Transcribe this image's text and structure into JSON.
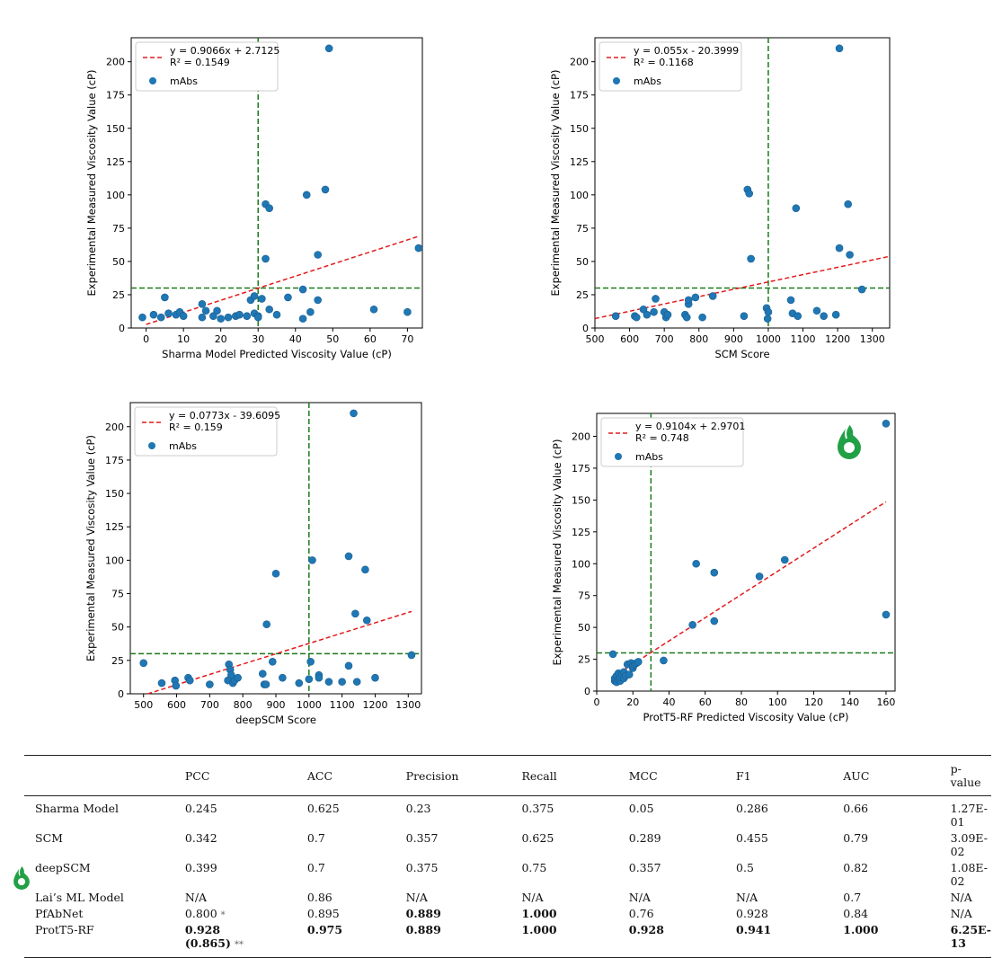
{
  "colors": {
    "point": "#1f77b4",
    "fit": "#e31a1c",
    "threshold": "#1a7a1a",
    "logo": "#22a046"
  },
  "chart_data": [
    {
      "type": "scatter",
      "xlabel": "Sharma Model Predicted Viscosity Value (cP)",
      "ylabel": "Experimental Measured Viscosity Value (cP)",
      "xlim": [
        -4,
        74
      ],
      "ylim": [
        0,
        218
      ],
      "xticks": [
        0,
        10,
        20,
        30,
        40,
        50,
        60,
        70
      ],
      "yticks": [
        0,
        25,
        50,
        75,
        100,
        125,
        150,
        175,
        200
      ],
      "legend": {
        "position": "top-left",
        "line1": "y = 0.9066x + 2.7125",
        "line2": "R² = 0.1549",
        "points": "mAbs"
      },
      "fit": {
        "slope": 0.9066,
        "intercept": 2.7125,
        "x_from": 0,
        "x_to": 73
      },
      "threshold": {
        "x": 30,
        "y": 30
      },
      "points": [
        [
          -1,
          8
        ],
        [
          2,
          10
        ],
        [
          4,
          8
        ],
        [
          5,
          23
        ],
        [
          6,
          11
        ],
        [
          8,
          10
        ],
        [
          9,
          12
        ],
        [
          10,
          9
        ],
        [
          15,
          18
        ],
        [
          15,
          8
        ],
        [
          16,
          13
        ],
        [
          18,
          9
        ],
        [
          19,
          13
        ],
        [
          20,
          7
        ],
        [
          22,
          8
        ],
        [
          24,
          9
        ],
        [
          25,
          10
        ],
        [
          27,
          9
        ],
        [
          28,
          21
        ],
        [
          29,
          11
        ],
        [
          29,
          24
        ],
        [
          30,
          9
        ],
        [
          30,
          8
        ],
        [
          31,
          22
        ],
        [
          32,
          93
        ],
        [
          33,
          90
        ],
        [
          32,
          52
        ],
        [
          33,
          14
        ],
        [
          35,
          10
        ],
        [
          38,
          23
        ],
        [
          42,
          29
        ],
        [
          42,
          7
        ],
        [
          43,
          100
        ],
        [
          44,
          12
        ],
        [
          46,
          55
        ],
        [
          46,
          21
        ],
        [
          48,
          104
        ],
        [
          49,
          210
        ],
        [
          61,
          14
        ],
        [
          70,
          12
        ],
        [
          73,
          60
        ]
      ]
    },
    {
      "type": "scatter",
      "xlabel": "SCM Score",
      "ylabel": "Experimental Measured Viscosity Value (cP)",
      "xlim": [
        500,
        1350
      ],
      "ylim": [
        0,
        218
      ],
      "xticks": [
        500,
        600,
        700,
        800,
        900,
        1000,
        1100,
        1200,
        1300
      ],
      "yticks": [
        0,
        25,
        50,
        75,
        100,
        125,
        150,
        175,
        200
      ],
      "legend": {
        "position": "top-left",
        "line1": "y = 0.055x - 20.3999",
        "line2": "R² = 0.1168",
        "points": "mAbs"
      },
      "fit": {
        "slope": 0.055,
        "intercept": -20.3999,
        "x_from": 500,
        "x_to": 1350
      },
      "threshold": {
        "x": 1000,
        "y": 30
      },
      "points": [
        [
          560,
          9
        ],
        [
          615,
          9
        ],
        [
          620,
          8
        ],
        [
          640,
          14
        ],
        [
          650,
          10
        ],
        [
          670,
          12
        ],
        [
          675,
          22
        ],
        [
          700,
          12
        ],
        [
          705,
          8
        ],
        [
          710,
          10
        ],
        [
          760,
          10
        ],
        [
          765,
          8
        ],
        [
          770,
          18
        ],
        [
          770,
          21
        ],
        [
          790,
          23
        ],
        [
          810,
          8
        ],
        [
          840,
          24
        ],
        [
          930,
          9
        ],
        [
          940,
          104
        ],
        [
          945,
          101
        ],
        [
          950,
          52
        ],
        [
          995,
          15
        ],
        [
          998,
          7
        ],
        [
          1000,
          12
        ],
        [
          1065,
          21
        ],
        [
          1070,
          11
        ],
        [
          1080,
          90
        ],
        [
          1085,
          9
        ],
        [
          1140,
          13
        ],
        [
          1160,
          9
        ],
        [
          1195,
          10
        ],
        [
          1205,
          60
        ],
        [
          1205,
          210
        ],
        [
          1230,
          93
        ],
        [
          1235,
          55
        ],
        [
          1270,
          29
        ]
      ]
    },
    {
      "type": "scatter",
      "xlabel": "deepSCM Score",
      "ylabel": "Experimental Measured Viscosity Value (cP)",
      "xlim": [
        460,
        1340
      ],
      "ylim": [
        0,
        218
      ],
      "xticks": [
        500,
        600,
        700,
        800,
        900,
        1000,
        1100,
        1200,
        1300
      ],
      "yticks": [
        0,
        25,
        50,
        75,
        100,
        125,
        150,
        175,
        200
      ],
      "legend": {
        "position": "top-left",
        "line1": "y = 0.0773x - 39.6095",
        "line2": "R² = 0.159",
        "points": "mAbs"
      },
      "fit": {
        "slope": 0.0773,
        "intercept": -39.6095,
        "x_from": 512,
        "x_to": 1310
      },
      "threshold": {
        "x": 1000,
        "y": 30
      },
      "points": [
        [
          500,
          23
        ],
        [
          555,
          8
        ],
        [
          595,
          10
        ],
        [
          598,
          6
        ],
        [
          635,
          12
        ],
        [
          640,
          10
        ],
        [
          700,
          7
        ],
        [
          755,
          10
        ],
        [
          758,
          22
        ],
        [
          762,
          18
        ],
        [
          765,
          14
        ],
        [
          770,
          8
        ],
        [
          775,
          10
        ],
        [
          785,
          12
        ],
        [
          860,
          15
        ],
        [
          865,
          7
        ],
        [
          870,
          7
        ],
        [
          872,
          52
        ],
        [
          890,
          24
        ],
        [
          900,
          90
        ],
        [
          920,
          12
        ],
        [
          970,
          8
        ],
        [
          1000,
          11
        ],
        [
          1005,
          24
        ],
        [
          1010,
          100
        ],
        [
          1030,
          14
        ],
        [
          1030,
          12
        ],
        [
          1060,
          9
        ],
        [
          1100,
          9
        ],
        [
          1120,
          103
        ],
        [
          1120,
          21
        ],
        [
          1135,
          210
        ],
        [
          1140,
          60
        ],
        [
          1145,
          9
        ],
        [
          1170,
          93
        ],
        [
          1175,
          55
        ],
        [
          1200,
          12
        ],
        [
          1310,
          29
        ]
      ]
    },
    {
      "type": "scatter",
      "xlabel": "ProtT5-RF Predicted Viscosity Value (cP)",
      "ylabel": "Experimental Measured Viscosity Value (cP)",
      "xlim": [
        0,
        165
      ],
      "ylim": [
        0,
        218
      ],
      "xticks": [
        0,
        20,
        40,
        60,
        80,
        100,
        120,
        140,
        160
      ],
      "yticks": [
        0,
        25,
        50,
        75,
        100,
        125,
        150,
        175,
        200
      ],
      "legend": {
        "position": "top-left",
        "line1": "y = 0.9104x + 2.9701",
        "line2": "R² = 0.748",
        "points": "mAbs"
      },
      "fit": {
        "slope": 0.9104,
        "intercept": 2.9701,
        "x_from": 9,
        "x_to": 160
      },
      "threshold": {
        "x": 30,
        "y": 30
      },
      "points": [
        [
          9,
          29
        ],
        [
          10,
          8
        ],
        [
          10,
          10
        ],
        [
          11,
          7
        ],
        [
          11,
          12
        ],
        [
          12,
          9
        ],
        [
          12,
          14
        ],
        [
          13,
          8
        ],
        [
          13,
          11
        ],
        [
          14,
          13
        ],
        [
          15,
          15
        ],
        [
          15,
          10
        ],
        [
          16,
          12
        ],
        [
          17,
          21
        ],
        [
          18,
          13
        ],
        [
          19,
          22
        ],
        [
          20,
          18
        ],
        [
          20,
          20
        ],
        [
          21,
          21
        ],
        [
          22,
          22
        ],
        [
          23,
          23
        ],
        [
          37,
          24
        ],
        [
          53,
          52
        ],
        [
          55,
          100
        ],
        [
          65,
          93
        ],
        [
          65,
          55
        ],
        [
          90,
          90
        ],
        [
          104,
          103
        ],
        [
          160,
          210
        ],
        [
          160,
          60
        ]
      ]
    }
  ],
  "table": {
    "headers": [
      "",
      "PCC",
      "ACC",
      "Precision",
      "Recall",
      "MCC",
      "F1",
      "AUC",
      "p-value"
    ],
    "rows": [
      {
        "model": "Sharma Model",
        "pcc": "0.245",
        "acc": "0.625",
        "precision": "0.23",
        "recall": "0.375",
        "mcc": "0.05",
        "f1": "0.286",
        "auc": "0.66",
        "p": "1.27E-01"
      },
      {
        "model": "SCM",
        "pcc": "0.342",
        "acc": "0.7",
        "precision": "0.357",
        "recall": "0.625",
        "mcc": "0.289",
        "f1": "0.455",
        "auc": "0.79",
        "p": "3.09E-02"
      },
      {
        "model": "deepSCM",
        "pcc": "0.399",
        "acc": "0.7",
        "precision": "0.375",
        "recall": "0.75",
        "mcc": "0.357",
        "f1": "0.5",
        "auc": "0.82",
        "p": "1.08E-02"
      },
      {
        "model": "Lai’s ML Model",
        "pcc": "N/A",
        "acc": "0.86",
        "precision": "N/A",
        "recall": "N/A",
        "mcc": "N/A",
        "f1": "N/A",
        "auc": "0.7",
        "p": "N/A"
      },
      {
        "model": "PfAbNet",
        "pcc": "0.800",
        "pcc_mark": "*",
        "acc": "0.895",
        "precision": "0.889",
        "recall": "1.000",
        "mcc": "0.76",
        "f1": "0.928",
        "auc": "0.84",
        "p": "N/A"
      },
      {
        "model": "ProtT5-RF",
        "pcc": "0.928",
        "pcc_extra": "(0.865)",
        "pcc_extra_mark": "**",
        "acc": "0.975",
        "precision": "0.889",
        "recall": "1.000",
        "mcc": "0.928",
        "f1": "0.941",
        "auc": "1.000",
        "p": "6.25E-13"
      }
    ]
  }
}
